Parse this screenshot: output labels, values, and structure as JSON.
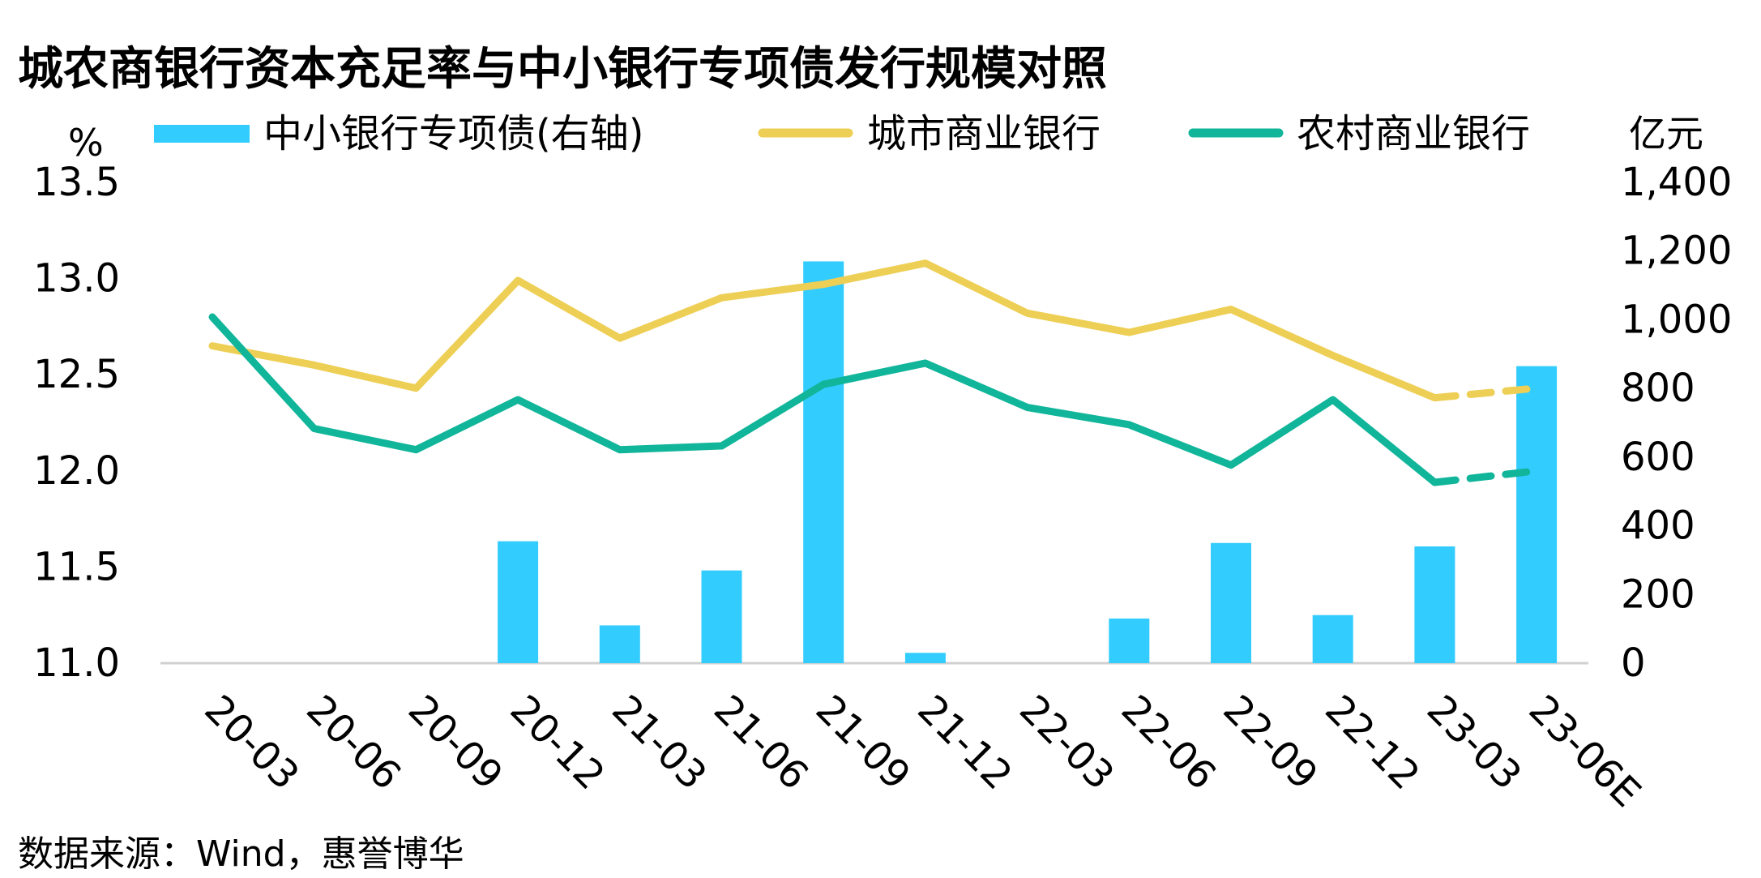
{
  "chart_data": {
    "type": "bar+line",
    "title": "城农商银行资本充足率与中小银行专项债发行规模对照",
    "source": "数据来源：Wind，惠誉博华",
    "y_left": {
      "unit": "%",
      "min": 11.0,
      "max": 13.5,
      "ticks": [
        "13.5",
        "13.0",
        "12.5",
        "12.0",
        "11.5",
        "11.0"
      ]
    },
    "y_right": {
      "unit": "亿元",
      "min": 0,
      "max": 1400,
      "ticks": [
        "1,400",
        "1,200",
        "1,000",
        "800",
        "600",
        "400",
        "200",
        "0"
      ]
    },
    "categories": [
      "20-03",
      "20-06",
      "20-09",
      "20-12",
      "21-03",
      "21-06",
      "21-09",
      "21-12",
      "22-03",
      "22-06",
      "22-09",
      "22-12",
      "23-03",
      "23-06E"
    ],
    "series": [
      {
        "name": "中小银行专项债(右轴)",
        "type": "bar",
        "axis": "right",
        "color": "#33CCFF",
        "values": [
          0,
          0,
          0,
          355,
          110,
          270,
          1170,
          30,
          0,
          130,
          350,
          140,
          340,
          865
        ]
      },
      {
        "name": "城市商业银行",
        "type": "line",
        "axis": "left",
        "color": "#EECF55",
        "values": [
          12.65,
          12.55,
          12.43,
          12.99,
          12.69,
          12.9,
          12.97,
          13.08,
          12.82,
          12.72,
          12.84,
          12.6,
          12.38,
          12.43
        ],
        "dashed_last_segment": true
      },
      {
        "name": "农村商业银行",
        "type": "line",
        "axis": "left",
        "color": "#10B59A",
        "values": [
          12.8,
          12.22,
          12.11,
          12.37,
          12.11,
          12.13,
          12.45,
          12.56,
          12.33,
          12.24,
          12.03,
          12.37,
          11.94,
          12.0
        ],
        "dashed_last_segment": true
      }
    ],
    "legend_position": "top",
    "grid": false
  }
}
